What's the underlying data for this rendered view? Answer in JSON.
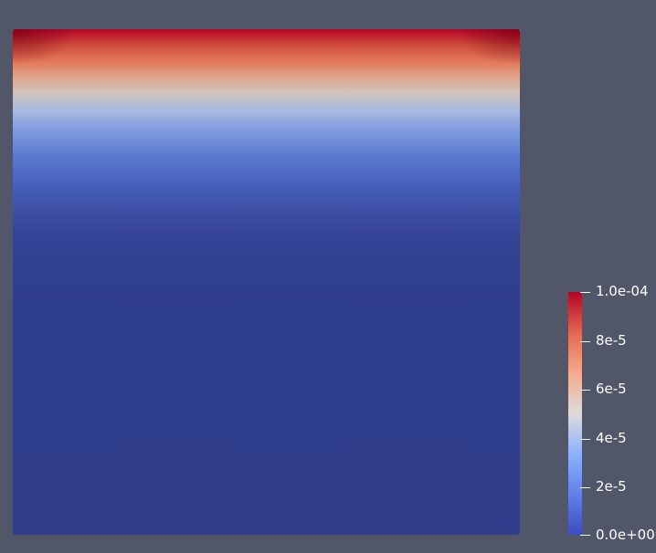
{
  "viewport": {
    "background_color": "#525669"
  },
  "field_plot": {
    "colormap": "cool-to-warm",
    "range_min": 0.0,
    "range_max": 0.0001
  },
  "colorbar": {
    "title": "",
    "ticks": [
      {
        "value": 0.0001,
        "label": "1.0e-04"
      },
      {
        "value": 8e-05,
        "label": "8e-5"
      },
      {
        "value": 6e-05,
        "label": "6e-5"
      },
      {
        "value": 4e-05,
        "label": "4e-5"
      },
      {
        "value": 2e-05,
        "label": "2e-5"
      },
      {
        "value": 0.0,
        "label": "0.0e+00"
      }
    ],
    "colors": {
      "low": "#3b4cc0",
      "mid": "#dddcdc",
      "high": "#b40426"
    }
  }
}
